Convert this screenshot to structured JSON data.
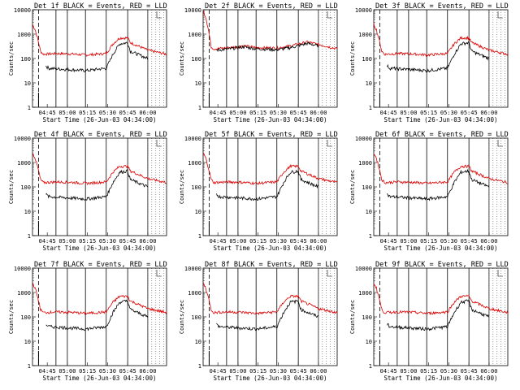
{
  "figure": {
    "background": "#ffffff"
  },
  "chart_data": [
    {
      "type": "line",
      "title": "Det 1f  BLACK = Events,  RED = LLD",
      "xlabel": "Start Time (26-Jun-03 04:34:00)",
      "ylabel": "Counts/sec",
      "yscale": "log",
      "ylim": [
        1,
        10000
      ],
      "ytick_labels": [
        "1",
        "10",
        "100",
        "1000",
        "10000"
      ],
      "xtick_labels": [
        "04:45",
        "05:00",
        "05:15",
        "05:30",
        "05:45",
        "06:00"
      ],
      "series": [
        {
          "name": "Events",
          "color": "#000000",
          "values": [
            null,
            null,
            null,
            null,
            null,
            null,
            null,
            null,
            null,
            null,
            null,
            null,
            null,
            null,
            null,
            null,
            null,
            null,
            null,
            null,
            null,
            null,
            null,
            null,
            null,
            null,
            null,
            null,
            null,
            null,
            null,
            null,
            null,
            null,
            null,
            null,
            null,
            null,
            null,
            null,
            null,
            null,
            null,
            null,
            null,
            null,
            null,
            null,
            null,
            null,
            null,
            null,
            null,
            null,
            null,
            null,
            null,
            null,
            null,
            null,
            null,
            null,
            null,
            null,
            null,
            null,
            null,
            null,
            null,
            null,
            null,
            null,
            null,
            null,
            null,
            null,
            null,
            null,
            null,
            null,
            null,
            null,
            null,
            null,
            null,
            null,
            null,
            null,
            null,
            null,
            null,
            null,
            null,
            null,
            null,
            null,
            null,
            null,
            null,
            null,
            null,
            null,
            null,
            null,
            null,
            null,
            null,
            null,
            null,
            null,
            null,
            null,
            null,
            null,
            null,
            null,
            null,
            null,
            null,
            null,
            null,
            null,
            null,
            null,
            null,
            null,
            null,
            null,
            null,
            null,
            null,
            null,
            null,
            null,
            null,
            null,
            null,
            null,
            null,
            null,
            null,
            null,
            null,
            null,
            null,
            null,
            null,
            null,
            null,
            null
          ]
        },
        {
          "name": "LLD",
          "color": "#dd0000",
          "values": []
        }
      ]
    },
    {
      "type": "line",
      "title": "Det 2f  BLACK = Events,  RED = LLD",
      "xlabel": "Start Time (26-Jun-03 04:34:00)",
      "ylabel": "Counts/sec",
      "yscale": "log",
      "ylim": [
        1,
        10000
      ],
      "ytick_labels": [
        "1",
        "10",
        "100",
        "1000",
        "10000"
      ],
      "xtick_labels": [
        "04:45",
        "05:00",
        "05:15",
        "05:30",
        "05:45",
        "06:00"
      ],
      "series": []
    },
    {
      "type": "line",
      "title": "Det 3f  BLACK = Events,  RED = LLD",
      "xlabel": "Start Time (26-Jun-03 04:34:00)",
      "ylabel": "Counts/sec",
      "yscale": "log",
      "ylim": [
        1,
        10000
      ],
      "ytick_labels": [
        "1",
        "10",
        "100",
        "1000",
        "10000"
      ],
      "xtick_labels": [
        "04:45",
        "05:00",
        "05:15",
        "05:30",
        "05:45",
        "06:00"
      ],
      "series": []
    },
    {
      "type": "line",
      "title": "Det 4f  BLACK = Events,  RED = LLD",
      "xlabel": "Start Time (26-Jun-03 04:34:00)",
      "ylabel": "Counts/sec",
      "yscale": "log",
      "ylim": [
        1,
        10000
      ],
      "ytick_labels": [
        "1",
        "10",
        "100",
        "1000",
        "10000"
      ],
      "xtick_labels": [
        "04:45",
        "05:00",
        "05:15",
        "05:30",
        "05:45",
        "06:00"
      ],
      "series": []
    },
    {
      "type": "line",
      "title": "Det 5f  BLACK = Events,  RED = LLD",
      "xlabel": "Start Time (26-Jun-03 04:34:00)",
      "ylabel": "Counts/sec",
      "yscale": "log",
      "ylim": [
        1,
        10000
      ],
      "ytick_labels": [
        "1",
        "10",
        "100",
        "1000",
        "10000"
      ],
      "xtick_labels": [
        "04:45",
        "05:00",
        "05:15",
        "05:30",
        "05:45",
        "06:00"
      ],
      "series": []
    },
    {
      "type": "line",
      "title": "Det 6f  BLACK = Events,  RED = LLD",
      "xlabel": "Start Time (26-Jun-03 04:34:00)",
      "ylabel": "Counts/sec",
      "yscale": "log",
      "ylim": [
        1,
        10000
      ],
      "ytick_labels": [
        "1",
        "10",
        "100",
        "1000",
        "10000"
      ],
      "xtick_labels": [
        "04:45",
        "05:00",
        "05:15",
        "05:30",
        "05:45",
        "06:00"
      ],
      "series": []
    },
    {
      "type": "line",
      "title": "Det 7f  BLACK = Events,  RED = LLD",
      "xlabel": "Start Time (26-Jun-03 04:34:00)",
      "ylabel": "Counts/sec",
      "yscale": "log",
      "ylim": [
        1,
        10000
      ],
      "ytick_labels": [
        "1",
        "10",
        "100",
        "1000",
        "10000"
      ],
      "xtick_labels": [
        "04:45",
        "05:00",
        "05:15",
        "05:30",
        "05:45",
        "06:00"
      ],
      "series": []
    },
    {
      "type": "line",
      "title": "Det 8f  BLACK = Events,  RED = LLD",
      "xlabel": "Start Time (26-Jun-03 04:34:00)",
      "ylabel": "Counts/sec",
      "yscale": "log",
      "ylim": [
        1,
        10000
      ],
      "ytick_labels": [
        "1",
        "10",
        "100",
        "1000",
        "10000"
      ],
      "xtick_labels": [
        "04:45",
        "05:00",
        "05:15",
        "05:30",
        "05:45",
        "06:00"
      ],
      "series": []
    },
    {
      "type": "line",
      "title": "Det 9f  BLACK = Events,  RED = LLD",
      "xlabel": "Start Time (26-Jun-03 04:34:00)",
      "ylabel": "Counts/sec",
      "yscale": "log",
      "ylim": [
        1,
        10000
      ],
      "ytick_labels": [
        "1",
        "10",
        "100",
        "1000",
        "10000"
      ],
      "xtick_labels": [
        "04:45",
        "05:00",
        "05:15",
        "05:30",
        "05:45",
        "06:00"
      ],
      "series": []
    }
  ],
  "profiles": {
    "time_range_min": [
      0,
      100
    ],
    "xtick_times_min": [
      11,
      26,
      41,
      56,
      71,
      86
    ],
    "event_vlines_min": [
      4.5,
      17.5,
      26,
      39.5,
      55,
      71
    ],
    "shade_min": [
      86,
      100
    ],
    "red_knots": [
      [
        0,
        2500
      ],
      [
        2,
        1500
      ],
      [
        4,
        600
      ],
      [
        6,
        200
      ],
      [
        8,
        150
      ],
      [
        18,
        160
      ],
      [
        28,
        155
      ],
      [
        40,
        140
      ],
      [
        55,
        160
      ],
      [
        60,
        400
      ],
      [
        65,
        700
      ],
      [
        71,
        700
      ],
      [
        73,
        450
      ],
      [
        86,
        220
      ],
      [
        100,
        150
      ]
    ],
    "black_knots": [
      [
        10,
        50
      ],
      [
        12,
        40
      ],
      [
        18,
        38
      ],
      [
        28,
        35
      ],
      [
        40,
        32
      ],
      [
        55,
        40
      ],
      [
        60,
        150
      ],
      [
        65,
        400
      ],
      [
        71,
        450
      ],
      [
        73,
        200
      ],
      [
        86,
        100
      ]
    ],
    "det2_red_knots": [
      [
        0,
        9000
      ],
      [
        2,
        5000
      ],
      [
        4,
        1500
      ],
      [
        6,
        300
      ],
      [
        8,
        250
      ],
      [
        20,
        280
      ],
      [
        30,
        330
      ],
      [
        40,
        280
      ],
      [
        55,
        270
      ],
      [
        65,
        330
      ],
      [
        78,
        480
      ],
      [
        86,
        380
      ],
      [
        100,
        250
      ]
    ],
    "det2_black_knots": [
      [
        10,
        220
      ],
      [
        20,
        250
      ],
      [
        30,
        300
      ],
      [
        40,
        250
      ],
      [
        55,
        230
      ],
      [
        65,
        280
      ],
      [
        78,
        420
      ],
      [
        86,
        330
      ]
    ]
  }
}
